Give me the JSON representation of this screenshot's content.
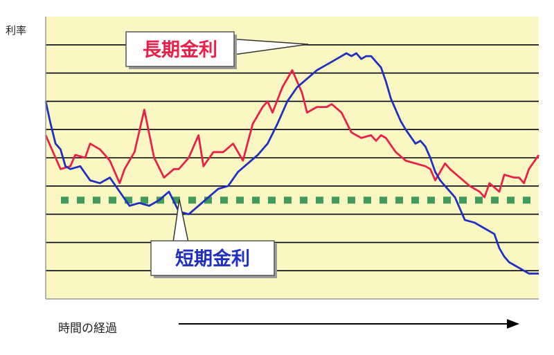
{
  "chart_data": {
    "type": "line",
    "title": "",
    "ylabel": "利率",
    "xlabel": "時間の経過",
    "ylim": [
      0,
      10
    ],
    "xlim": [
      0,
      100
    ],
    "grid": true,
    "colors": {
      "plot_background": "#FBF7C2",
      "grid": "#000000",
      "long_term": "#E8204A",
      "short_term": "#1F2FBF",
      "reference_line": "#3F9A5C"
    },
    "series": [
      {
        "name": "長期金利",
        "color": "#E8204A",
        "x": [
          0,
          2,
          3,
          5,
          6,
          8,
          9,
          11,
          13,
          15,
          16,
          18,
          20,
          22,
          24,
          26,
          27,
          29,
          31,
          32,
          34,
          36,
          38,
          40,
          42,
          44,
          45,
          46,
          48,
          50,
          52,
          53,
          55,
          57,
          58,
          60,
          62,
          64,
          66,
          67,
          68,
          69,
          71,
          73,
          75,
          77,
          78,
          79,
          81,
          82,
          84,
          86,
          88,
          89,
          90,
          92,
          93,
          95,
          96,
          97,
          98,
          100
        ],
        "y": [
          5.8,
          5.0,
          4.6,
          4.7,
          5.1,
          5.0,
          5.5,
          5.3,
          4.9,
          4.1,
          4.6,
          5.2,
          6.7,
          5.0,
          4.3,
          4.6,
          4.6,
          5.0,
          5.8,
          4.7,
          5.2,
          5.2,
          5.5,
          4.9,
          6.2,
          6.8,
          7.0,
          6.6,
          7.5,
          8.1,
          7.3,
          6.6,
          6.8,
          6.8,
          6.9,
          6.6,
          5.9,
          5.7,
          5.8,
          5.6,
          5.8,
          5.7,
          5.2,
          4.9,
          4.8,
          4.7,
          4.6,
          4.2,
          4.8,
          4.6,
          4.3,
          4.0,
          3.8,
          3.6,
          4.1,
          3.8,
          4.4,
          4.3,
          4.3,
          4.1,
          4.6,
          5.1
        ]
      },
      {
        "name": "短期金利",
        "color": "#1F2FBF",
        "x": [
          0,
          1,
          2,
          3,
          4,
          5,
          7,
          9,
          11,
          13,
          15,
          17,
          19,
          21,
          23,
          25,
          27,
          29,
          31,
          33,
          35,
          37,
          39,
          41,
          43,
          45,
          47,
          49,
          51,
          53,
          55,
          56,
          58,
          60,
          61,
          62,
          63,
          64,
          65,
          66,
          67,
          68,
          69,
          70,
          72,
          73,
          75,
          76,
          77,
          78,
          79,
          80,
          81,
          83,
          84,
          85,
          87,
          89,
          91,
          92,
          93,
          94,
          95,
          97,
          98,
          100
        ],
        "y": [
          7.0,
          6.2,
          5.5,
          5.3,
          4.7,
          4.6,
          4.7,
          4.2,
          4.1,
          4.3,
          3.8,
          3.3,
          3.4,
          3.3,
          3.5,
          3.8,
          3.1,
          3.0,
          3.3,
          3.6,
          3.9,
          4.0,
          4.5,
          4.8,
          5.1,
          5.5,
          6.2,
          7.0,
          7.5,
          7.8,
          8.1,
          8.2,
          8.4,
          8.6,
          8.7,
          8.6,
          8.7,
          8.5,
          8.6,
          8.6,
          8.4,
          8.2,
          7.7,
          7.1,
          6.3,
          6.0,
          5.5,
          5.6,
          5.4,
          5.0,
          4.5,
          4.2,
          4.0,
          3.6,
          3.2,
          2.8,
          2.7,
          2.5,
          2.3,
          1.8,
          1.5,
          1.3,
          1.2,
          1.0,
          0.9,
          0.9
        ]
      }
    ],
    "reference_line": {
      "y": 3.5,
      "style": "dashed"
    },
    "callouts": [
      {
        "label": "長期金利",
        "color": "#E8204A"
      },
      {
        "label": "短期金利",
        "color": "#1F2FBF"
      }
    ]
  }
}
